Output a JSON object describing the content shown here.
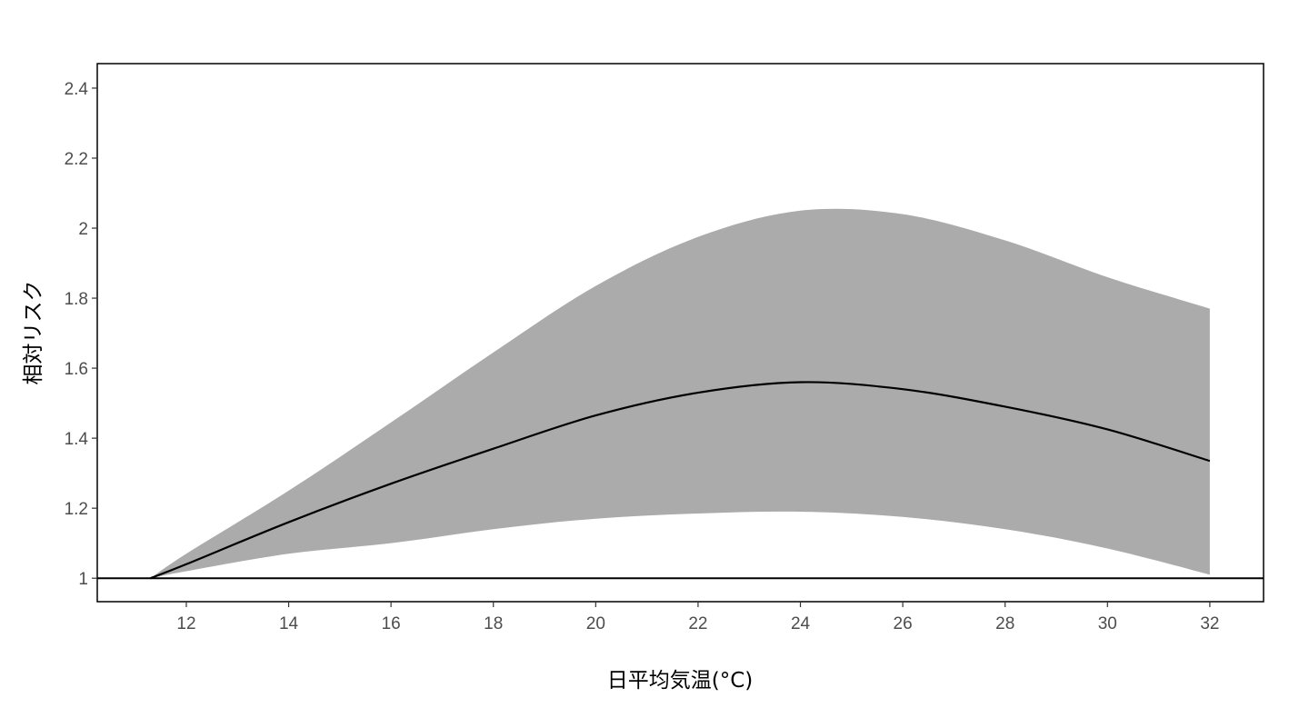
{
  "chart_data": {
    "type": "line",
    "title": "",
    "xlabel": "日平均気温(°C)",
    "ylabel": "相対リスク",
    "xlim": [
      10.26,
      33.05
    ],
    "ylim": [
      0.933,
      2.47
    ],
    "xticks": [
      12,
      14,
      16,
      18,
      20,
      22,
      24,
      26,
      28,
      30,
      32
    ],
    "yticks": [
      1,
      1.2,
      1.4,
      1.6,
      1.8,
      2,
      2.2,
      2.4
    ],
    "ytick_labels": [
      "1",
      "1.2",
      "1.4",
      "1.6",
      "1.8",
      "2",
      "2.2",
      "2.4"
    ],
    "grid": false,
    "reference_line": 1,
    "x": [
      11.3,
      12,
      14,
      16,
      18,
      20,
      22,
      24,
      26,
      28,
      30,
      32
    ],
    "series": [
      {
        "values": [
          1.0,
          1.04,
          1.16,
          1.27,
          1.37,
          1.465,
          1.53,
          1.56,
          1.54,
          1.49,
          1.425,
          1.335
        ]
      }
    ],
    "ci_upper": [
      1.0,
      1.07,
      1.25,
      1.445,
      1.645,
      1.835,
      1.975,
      2.05,
      2.04,
      1.965,
      1.86,
      1.77
    ],
    "ci_lower": [
      1.0,
      1.02,
      1.07,
      1.1,
      1.14,
      1.17,
      1.185,
      1.19,
      1.175,
      1.14,
      1.085,
      1.01
    ],
    "colors": {
      "line": "#000000",
      "ribbon": "#ababab",
      "axis": "#000000"
    }
  }
}
